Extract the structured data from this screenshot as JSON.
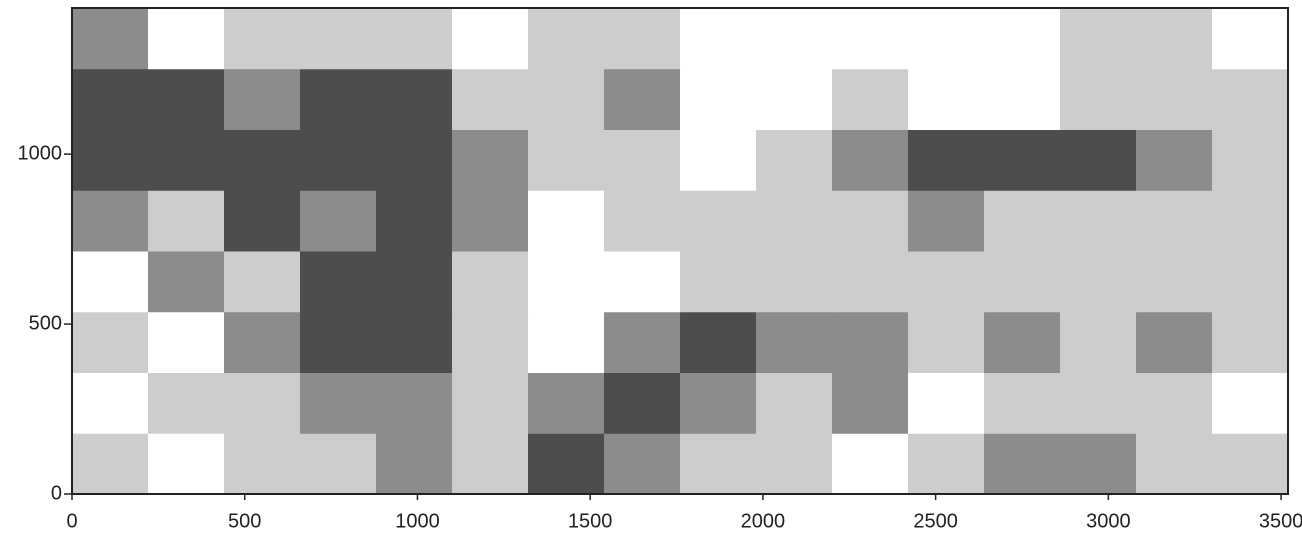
{
  "chart_data": {
    "type": "contour",
    "xlim": [
      0,
      3520
    ],
    "ylim": [
      0,
      1430
    ],
    "xticks": [
      0,
      500,
      1000,
      1500,
      2000,
      2500,
      3000,
      3500
    ],
    "yticks": [
      0,
      500,
      1000
    ],
    "xbins": [
      0,
      220,
      440,
      660,
      880,
      1100,
      1320,
      1540,
      1760,
      1980,
      2200,
      2420,
      2640,
      2860,
      3080,
      3300,
      3520
    ],
    "ybins": [
      0,
      178.75,
      357.5,
      536.25,
      715,
      893.75,
      1072.5,
      1251.25,
      1430
    ],
    "level_colors": [
      "#ffffff",
      "#cdcdcd",
      "#8c8c8c",
      "#4d4d4d"
    ],
    "z": [
      [
        1,
        0,
        1,
        1,
        2,
        1,
        3,
        2,
        1,
        1,
        0,
        1,
        2,
        2,
        1,
        1
      ],
      [
        0,
        1,
        1,
        2,
        2,
        1,
        2,
        3,
        2,
        1,
        2,
        0,
        1,
        1,
        1,
        0
      ],
      [
        1,
        0,
        2,
        3,
        3,
        1,
        0,
        2,
        3,
        2,
        2,
        1,
        2,
        1,
        2,
        1
      ],
      [
        0,
        2,
        1,
        3,
        3,
        1,
        0,
        0,
        1,
        1,
        1,
        1,
        1,
        1,
        1,
        1
      ],
      [
        2,
        1,
        3,
        2,
        3,
        2,
        0,
        1,
        1,
        1,
        1,
        2,
        1,
        1,
        1,
        1
      ],
      [
        3,
        3,
        3,
        3,
        3,
        2,
        1,
        1,
        0,
        1,
        2,
        3,
        3,
        3,
        2,
        1
      ],
      [
        3,
        3,
        2,
        3,
        3,
        1,
        1,
        2,
        0,
        0,
        1,
        0,
        0,
        1,
        1,
        1
      ],
      [
        2,
        0,
        1,
        1,
        1,
        0,
        1,
        1,
        0,
        0,
        0,
        0,
        0,
        1,
        1,
        0
      ]
    ]
  }
}
